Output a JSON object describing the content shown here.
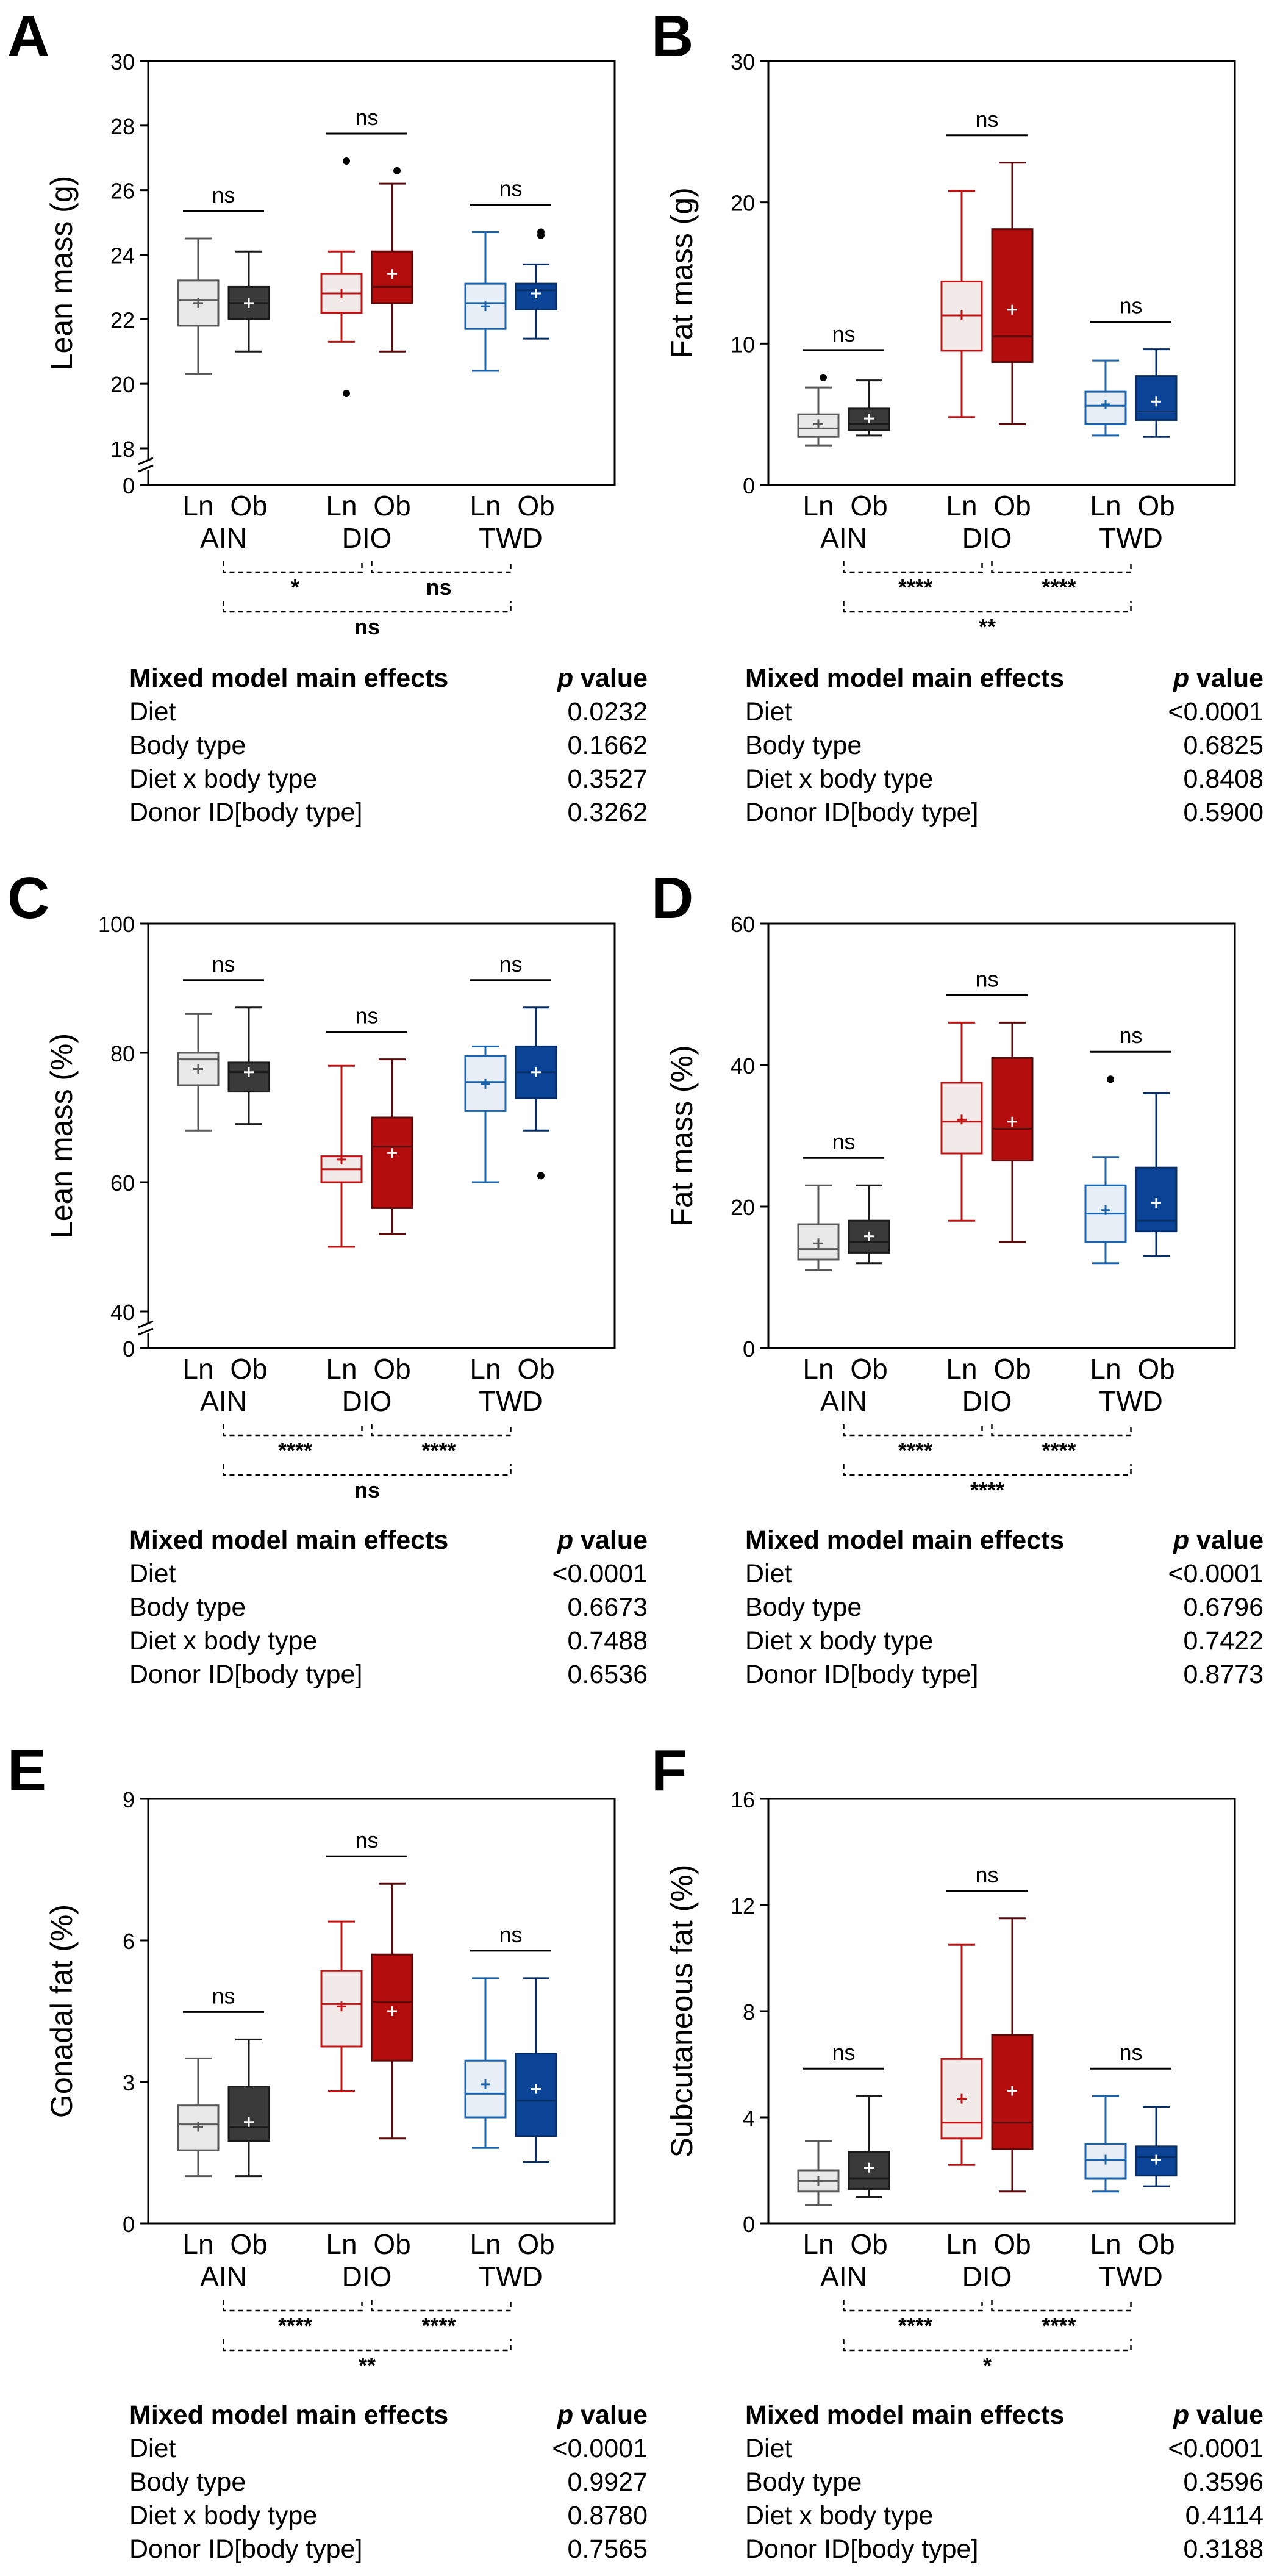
{
  "figure": {
    "colors": {
      "ln_grey_fill": "#e8e8e8",
      "ln_grey_edge": "#595959",
      "ob_grey_fill": "#3a3a3a",
      "ob_grey_edge": "#1a1a1a",
      "ln_red_fill": "#f2e9e9",
      "ln_red_edge": "#c11313",
      "ob_red_fill": "#b30d0d",
      "ob_red_edge": "#5a0a0a",
      "ln_blue_fill": "#e7eef6",
      "ln_blue_edge": "#1b64ad",
      "ob_blue_fill": "#0b4496",
      "ob_blue_edge": "#082e66"
    },
    "stats_header": {
      "label": "Mixed model main effects",
      "p": "p",
      "value": " value"
    }
  },
  "chart_data": [
    {
      "panel": "A",
      "type": "box",
      "ylabel": "Lean mass (g)",
      "axis_break": true,
      "y_range": [
        18,
        30
      ],
      "y_ticks": [
        18,
        20,
        22,
        24,
        26,
        28,
        30
      ],
      "zero_tick": "0",
      "groups": [
        "AIN",
        "DIO",
        "TWD"
      ],
      "categories": [
        "Ln",
        "Ob",
        "Ln",
        "Ob",
        "Ln",
        "Ob"
      ],
      "boxes": [
        {
          "diet": "AIN",
          "body": "Ln",
          "min": 20.3,
          "q1": 21.8,
          "median": 22.6,
          "q3": 23.2,
          "max": 24.5,
          "mean": 22.5,
          "outliers": []
        },
        {
          "diet": "AIN",
          "body": "Ob",
          "min": 21.0,
          "q1": 22.0,
          "median": 22.5,
          "q3": 23.0,
          "max": 24.1,
          "mean": 22.5,
          "outliers": []
        },
        {
          "diet": "DIO",
          "body": "Ln",
          "min": 21.3,
          "q1": 22.2,
          "median": 22.8,
          "q3": 23.4,
          "max": 24.1,
          "mean": 22.8,
          "outliers": [
            26.9,
            19.7
          ]
        },
        {
          "diet": "DIO",
          "body": "Ob",
          "min": 21.0,
          "q1": 22.5,
          "median": 23.0,
          "q3": 24.1,
          "max": 26.2,
          "mean": 23.4,
          "outliers": [
            26.6
          ]
        },
        {
          "diet": "TWD",
          "body": "Ln",
          "min": 20.4,
          "q1": 21.7,
          "median": 22.5,
          "q3": 23.1,
          "max": 24.7,
          "mean": 22.4,
          "outliers": []
        },
        {
          "diet": "TWD",
          "body": "Ob",
          "min": 21.4,
          "q1": 22.3,
          "median": 22.9,
          "q3": 23.1,
          "max": 23.7,
          "mean": 22.8,
          "outliers": [
            24.6,
            24.7
          ]
        }
      ],
      "within_diet": [
        "ns",
        "ns",
        "ns"
      ],
      "between_diet": {
        "AIN_vs_DIO": "*",
        "DIO_vs_TWD": "ns",
        "AIN_vs_TWD": "ns"
      },
      "stats": [
        {
          "effect": "Diet",
          "p": "0.0232"
        },
        {
          "effect": "Body type",
          "p": "0.1662"
        },
        {
          "effect": "Diet x body type",
          "p": "0.3527"
        },
        {
          "effect": "Donor ID[body type]",
          "p": "0.3262"
        }
      ]
    },
    {
      "panel": "B",
      "type": "box",
      "ylabel": "Fat mass (g)",
      "axis_break": false,
      "y_range": [
        0,
        30
      ],
      "y_ticks": [
        0,
        10,
        20,
        30
      ],
      "groups": [
        "AIN",
        "DIO",
        "TWD"
      ],
      "categories": [
        "Ln",
        "Ob",
        "Ln",
        "Ob",
        "Ln",
        "Ob"
      ],
      "boxes": [
        {
          "diet": "AIN",
          "body": "Ln",
          "min": 2.8,
          "q1": 3.4,
          "median": 4.0,
          "q3": 5.0,
          "max": 6.9,
          "mean": 4.3,
          "outliers": [
            7.6
          ]
        },
        {
          "diet": "AIN",
          "body": "Ob",
          "min": 3.5,
          "q1": 3.9,
          "median": 4.3,
          "q3": 5.4,
          "max": 7.4,
          "mean": 4.7,
          "outliers": []
        },
        {
          "diet": "DIO",
          "body": "Ln",
          "min": 4.8,
          "q1": 9.5,
          "median": 12.0,
          "q3": 14.4,
          "max": 20.8,
          "mean": 12.0,
          "outliers": []
        },
        {
          "diet": "DIO",
          "body": "Ob",
          "min": 4.3,
          "q1": 8.7,
          "median": 10.5,
          "q3": 18.1,
          "max": 22.8,
          "mean": 12.4,
          "outliers": []
        },
        {
          "diet": "TWD",
          "body": "Ln",
          "min": 3.5,
          "q1": 4.3,
          "median": 5.6,
          "q3": 6.6,
          "max": 8.8,
          "mean": 5.7,
          "outliers": []
        },
        {
          "diet": "TWD",
          "body": "Ob",
          "min": 3.4,
          "q1": 4.6,
          "median": 5.2,
          "q3": 7.7,
          "max": 9.6,
          "mean": 5.9,
          "outliers": []
        }
      ],
      "within_diet": [
        "ns",
        "ns",
        "ns"
      ],
      "between_diet": {
        "AIN_vs_DIO": "****",
        "DIO_vs_TWD": "****",
        "AIN_vs_TWD": "**"
      },
      "stats": [
        {
          "effect": "Diet",
          "p": "<0.0001"
        },
        {
          "effect": "Body type",
          "p": "0.6825"
        },
        {
          "effect": "Diet x body type",
          "p": "0.8408"
        },
        {
          "effect": "Donor ID[body type]",
          "p": "0.5900"
        }
      ]
    },
    {
      "panel": "C",
      "type": "box",
      "ylabel": "Lean mass (%)",
      "axis_break": true,
      "y_range": [
        40,
        100
      ],
      "y_ticks": [
        40,
        60,
        80,
        100
      ],
      "zero_tick": "0",
      "groups": [
        "AIN",
        "DIO",
        "TWD"
      ],
      "categories": [
        "Ln",
        "Ob",
        "Ln",
        "Ob",
        "Ln",
        "Ob"
      ],
      "boxes": [
        {
          "diet": "AIN",
          "body": "Ln",
          "min": 68,
          "q1": 75,
          "median": 79,
          "q3": 80,
          "max": 86,
          "mean": 77.5,
          "outliers": []
        },
        {
          "diet": "AIN",
          "body": "Ob",
          "min": 69,
          "q1": 74,
          "median": 77,
          "q3": 78.5,
          "max": 87,
          "mean": 77,
          "outliers": []
        },
        {
          "diet": "DIO",
          "body": "Ln",
          "min": 50,
          "q1": 60,
          "median": 62,
          "q3": 64,
          "max": 78,
          "mean": 63.5,
          "outliers": []
        },
        {
          "diet": "DIO",
          "body": "Ob",
          "min": 52,
          "q1": 56,
          "median": 65.5,
          "q3": 70,
          "max": 79,
          "mean": 64.5,
          "outliers": []
        },
        {
          "diet": "TWD",
          "body": "Ln",
          "min": 60,
          "q1": 71,
          "median": 75.5,
          "q3": 79.5,
          "max": 81,
          "mean": 75.2,
          "outliers": []
        },
        {
          "diet": "TWD",
          "body": "Ob",
          "min": 68,
          "q1": 73,
          "median": 77,
          "q3": 81,
          "max": 87,
          "mean": 77,
          "outliers": [
            61
          ]
        }
      ],
      "within_diet": [
        "ns",
        "ns",
        "ns"
      ],
      "between_diet": {
        "AIN_vs_DIO": "****",
        "DIO_vs_TWD": "****",
        "AIN_vs_TWD": "ns"
      },
      "stats": [
        {
          "effect": "Diet",
          "p": "<0.0001"
        },
        {
          "effect": "Body type",
          "p": "0.6673"
        },
        {
          "effect": "Diet x body type",
          "p": "0.7488"
        },
        {
          "effect": "Donor ID[body type]",
          "p": "0.6536"
        }
      ]
    },
    {
      "panel": "D",
      "type": "box",
      "ylabel": "Fat mass (%)",
      "axis_break": false,
      "y_range": [
        0,
        60
      ],
      "y_ticks": [
        0,
        20,
        40,
        60
      ],
      "groups": [
        "AIN",
        "DIO",
        "TWD"
      ],
      "categories": [
        "Ln",
        "Ob",
        "Ln",
        "Ob",
        "Ln",
        "Ob"
      ],
      "boxes": [
        {
          "diet": "AIN",
          "body": "Ln",
          "min": 11,
          "q1": 12.5,
          "median": 14,
          "q3": 17.5,
          "max": 23,
          "mean": 14.8,
          "outliers": []
        },
        {
          "diet": "AIN",
          "body": "Ob",
          "min": 12,
          "q1": 13.5,
          "median": 15,
          "q3": 18,
          "max": 23,
          "mean": 15.8,
          "outliers": []
        },
        {
          "diet": "DIO",
          "body": "Ln",
          "min": 18,
          "q1": 27.5,
          "median": 32,
          "q3": 37.5,
          "max": 46,
          "mean": 32.3,
          "outliers": []
        },
        {
          "diet": "DIO",
          "body": "Ob",
          "min": 15,
          "q1": 26.5,
          "median": 31,
          "q3": 41,
          "max": 46,
          "mean": 32,
          "outliers": []
        },
        {
          "diet": "TWD",
          "body": "Ln",
          "min": 12,
          "q1": 15,
          "median": 19,
          "q3": 23,
          "max": 27,
          "mean": 19.5,
          "outliers": [
            38
          ]
        },
        {
          "diet": "TWD",
          "body": "Ob",
          "min": 13,
          "q1": 16.5,
          "median": 18,
          "q3": 25.5,
          "max": 36,
          "mean": 20.5,
          "outliers": []
        }
      ],
      "within_diet": [
        "ns",
        "ns",
        "ns"
      ],
      "between_diet": {
        "AIN_vs_DIO": "****",
        "DIO_vs_TWD": "****",
        "AIN_vs_TWD": "****"
      },
      "stats": [
        {
          "effect": "Diet",
          "p": "<0.0001"
        },
        {
          "effect": "Body type",
          "p": "0.6796"
        },
        {
          "effect": "Diet x body type",
          "p": "0.7422"
        },
        {
          "effect": "Donor ID[body type]",
          "p": "0.8773"
        }
      ]
    },
    {
      "panel": "E",
      "type": "box",
      "ylabel": "Gonadal fat (%)",
      "axis_break": false,
      "y_range": [
        0,
        9
      ],
      "y_ticks": [
        0,
        3,
        6,
        9
      ],
      "groups": [
        "AIN",
        "DIO",
        "TWD"
      ],
      "categories": [
        "Ln",
        "Ob",
        "Ln",
        "Ob",
        "Ln",
        "Ob"
      ],
      "boxes": [
        {
          "diet": "AIN",
          "body": "Ln",
          "min": 1.0,
          "q1": 1.55,
          "median": 2.1,
          "q3": 2.5,
          "max": 3.5,
          "mean": 2.05,
          "outliers": []
        },
        {
          "diet": "AIN",
          "body": "Ob",
          "min": 1.0,
          "q1": 1.75,
          "median": 2.05,
          "q3": 2.9,
          "max": 3.9,
          "mean": 2.15,
          "outliers": []
        },
        {
          "diet": "DIO",
          "body": "Ln",
          "min": 2.8,
          "q1": 3.75,
          "median": 4.65,
          "q3": 5.35,
          "max": 6.4,
          "mean": 4.6,
          "outliers": []
        },
        {
          "diet": "DIO",
          "body": "Ob",
          "min": 1.8,
          "q1": 3.45,
          "median": 4.7,
          "q3": 5.7,
          "max": 7.2,
          "mean": 4.5,
          "outliers": []
        },
        {
          "diet": "TWD",
          "body": "Ln",
          "min": 1.6,
          "q1": 2.25,
          "median": 2.75,
          "q3": 3.45,
          "max": 5.2,
          "mean": 2.95,
          "outliers": []
        },
        {
          "diet": "TWD",
          "body": "Ob",
          "min": 1.3,
          "q1": 1.85,
          "median": 2.6,
          "q3": 3.6,
          "max": 5.2,
          "mean": 2.85,
          "outliers": []
        }
      ],
      "within_diet": [
        "ns",
        "ns",
        "ns"
      ],
      "between_diet": {
        "AIN_vs_DIO": "****",
        "DIO_vs_TWD": "****",
        "AIN_vs_TWD": "**"
      },
      "stats": [
        {
          "effect": "Diet",
          "p": "<0.0001"
        },
        {
          "effect": "Body type",
          "p": "0.9927"
        },
        {
          "effect": "Diet x body type",
          "p": "0.8780"
        },
        {
          "effect": "Donor ID[body type]",
          "p": "0.7565"
        }
      ]
    },
    {
      "panel": "F",
      "type": "box",
      "ylabel": "Subcutaneous fat (%)",
      "axis_break": false,
      "y_range": [
        0,
        16
      ],
      "y_ticks": [
        0,
        4,
        8,
        12,
        16
      ],
      "groups": [
        "AIN",
        "DIO",
        "TWD"
      ],
      "categories": [
        "Ln",
        "Ob",
        "Ln",
        "Ob",
        "Ln",
        "Ob"
      ],
      "boxes": [
        {
          "diet": "AIN",
          "body": "Ln",
          "min": 0.7,
          "q1": 1.2,
          "median": 1.6,
          "q3": 2.0,
          "max": 3.1,
          "mean": 1.6,
          "outliers": []
        },
        {
          "diet": "AIN",
          "body": "Ob",
          "min": 1.0,
          "q1": 1.3,
          "median": 1.7,
          "q3": 2.7,
          "max": 4.8,
          "mean": 2.1,
          "outliers": []
        },
        {
          "diet": "DIO",
          "body": "Ln",
          "min": 2.2,
          "q1": 3.2,
          "median": 3.8,
          "q3": 6.2,
          "max": 10.5,
          "mean": 4.7,
          "outliers": []
        },
        {
          "diet": "DIO",
          "body": "Ob",
          "min": 1.2,
          "q1": 2.8,
          "median": 3.8,
          "q3": 7.1,
          "max": 11.5,
          "mean": 5.0,
          "outliers": []
        },
        {
          "diet": "TWD",
          "body": "Ln",
          "min": 1.2,
          "q1": 1.7,
          "median": 2.4,
          "q3": 3.0,
          "max": 4.8,
          "mean": 2.4,
          "outliers": []
        },
        {
          "diet": "TWD",
          "body": "Ob",
          "min": 1.4,
          "q1": 1.8,
          "median": 2.5,
          "q3": 2.9,
          "max": 4.4,
          "mean": 2.4,
          "outliers": []
        }
      ],
      "within_diet": [
        "ns",
        "ns",
        "ns"
      ],
      "between_diet": {
        "AIN_vs_DIO": "****",
        "DIO_vs_TWD": "****",
        "AIN_vs_TWD": "*"
      },
      "stats": [
        {
          "effect": "Diet",
          "p": "<0.0001"
        },
        {
          "effect": "Body type",
          "p": "0.3596"
        },
        {
          "effect": "Diet x body type",
          "p": "0.4114"
        },
        {
          "effect": "Donor ID[body type]",
          "p": "0.3188"
        }
      ]
    }
  ]
}
